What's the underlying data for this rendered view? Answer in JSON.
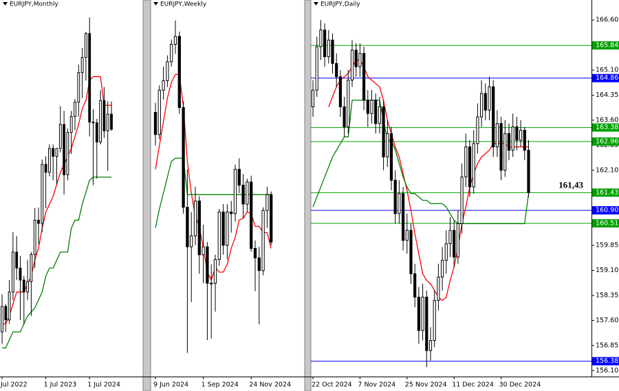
{
  "chart_data": [
    {
      "type": "candlestick",
      "title": "EURJPY,Monthly",
      "ylim": [
        130.4,
        177.6
      ],
      "categories": [
        "Jul 2022",
        null,
        null,
        null,
        null,
        null,
        null,
        null,
        null,
        null,
        null,
        null,
        "1 Jul 2023",
        null,
        null,
        null,
        null,
        null,
        null,
        null,
        null,
        null,
        null,
        null,
        "1 Jul 2024",
        null,
        null,
        null,
        null,
        null,
        null
      ],
      "ohlc": [
        [
          136.0,
          140.7,
          134.5,
          139.2
        ],
        [
          139.2,
          139.5,
          136.0,
          137.5
        ],
        [
          137.5,
          142.5,
          137.0,
          141.0
        ],
        [
          141.0,
          148.5,
          140.0,
          146.0
        ],
        [
          146.0,
          148.0,
          142.5,
          144.0
        ],
        [
          144.0,
          145.5,
          137.5,
          142.5
        ],
        [
          142.5,
          143.0,
          137.0,
          141.0
        ],
        [
          141.0,
          145.0,
          140.0,
          142.3
        ],
        [
          142.3,
          146.0,
          138.0,
          145.7
        ],
        [
          145.7,
          151.5,
          144.0,
          150.0
        ],
        [
          150.0,
          151.6,
          147.0,
          149.6
        ],
        [
          149.6,
          157.6,
          148.5,
          157.0
        ],
        [
          157.0,
          158.0,
          151.5,
          156.0
        ],
        [
          156.0,
          159.5,
          155.5,
          159.0
        ],
        [
          159.0,
          159.5,
          155.0,
          158.0
        ],
        [
          158.0,
          159.0,
          154.5,
          159.0
        ],
        [
          159.0,
          164.3,
          158.5,
          162.0
        ],
        [
          162.0,
          163.7,
          153.2,
          155.7
        ],
        [
          155.7,
          161.5,
          155.0,
          161.0
        ],
        [
          161.0,
          163.7,
          158.3,
          163.0
        ],
        [
          163.0,
          165.2,
          161.3,
          164.8
        ],
        [
          164.8,
          169.5,
          163.0,
          168.5
        ],
        [
          168.5,
          171.6,
          165.3,
          170.4
        ],
        [
          170.4,
          173.6,
          167.5,
          173.4
        ],
        [
          173.4,
          175.4,
          160.5,
          162.3
        ],
        [
          162.3,
          163.9,
          154.4,
          162.2
        ],
        [
          162.2,
          162.7,
          155.2,
          159.8
        ],
        [
          159.8,
          166.3,
          159.5,
          165.0
        ],
        [
          165.0,
          166.7,
          160.3,
          161.2
        ],
        [
          161.2,
          164.9,
          156.2,
          163.3
        ],
        [
          163.3,
          164.9,
          161.2,
          161.4
        ]
      ],
      "lines": [
        {
          "color": "#ff0000",
          "values": [
            137,
            137,
            138,
            139.5,
            141,
            141,
            141,
            142,
            143,
            145,
            146.5,
            149,
            151,
            152,
            153,
            154.5,
            156,
            157,
            158,
            159,
            160.5,
            162,
            164,
            165,
            167.5,
            168,
            168,
            168,
            164.4,
            164.4,
            164.4
          ]
        },
        {
          "color": "#008000",
          "values": [
            134,
            134,
            135,
            136,
            136,
            136,
            137,
            138,
            138.5,
            139,
            140,
            141,
            143,
            144,
            144,
            145,
            146,
            146,
            146,
            149,
            150,
            150,
            152,
            153.5,
            155,
            155.4,
            155.4,
            155.4,
            155.4,
            155.4,
            155.4
          ]
        }
      ]
    },
    {
      "type": "candlestick",
      "title": "EURJPY,Weekly",
      "ylim": [
        152.9,
        176.7
      ],
      "categories": [
        "9 Jun 2024",
        null,
        null,
        null,
        null,
        null,
        null,
        null,
        null,
        null,
        null,
        null,
        "1 Sep 2024",
        null,
        null,
        null,
        null,
        null,
        null,
        null,
        null,
        null,
        null,
        null,
        "24 Nov 2024",
        null,
        null,
        null,
        null,
        null
      ],
      "ohlc": [
        [
          169.6,
          170.2,
          167.5,
          168.2
        ],
        [
          168.2,
          171.3,
          167.9,
          171.0
        ],
        [
          171.0,
          172.5,
          170.4,
          171.6
        ],
        [
          171.6,
          173.2,
          171.2,
          172.8
        ],
        [
          172.8,
          174.2,
          172.5,
          173.9
        ],
        [
          173.9,
          175.4,
          173.3,
          174.4
        ],
        [
          174.4,
          174.7,
          169.5,
          169.9
        ],
        [
          169.9,
          170.3,
          163.2,
          163.6
        ],
        [
          163.6,
          166.0,
          154.4,
          161.1
        ],
        [
          161.1,
          163.3,
          157.6,
          161.8
        ],
        [
          161.8,
          164.9,
          161.2,
          164.0
        ],
        [
          164.0,
          164.3,
          159.4,
          160.6
        ],
        [
          160.6,
          162.5,
          158.8,
          161.1
        ],
        [
          161.1,
          161.4,
          155.2,
          158.8
        ],
        [
          158.8,
          160.0,
          155.3,
          158.8
        ],
        [
          158.8,
          160.6,
          157.0,
          160.3
        ],
        [
          160.3,
          163.5,
          159.9,
          163.3
        ],
        [
          163.3,
          163.8,
          160.6,
          161.2
        ],
        [
          161.2,
          163.8,
          160.3,
          163.3
        ],
        [
          163.3,
          164.0,
          162.0,
          163.2
        ],
        [
          163.2,
          166.3,
          162.7,
          166.0
        ],
        [
          166.0,
          166.7,
          164.5,
          165.0
        ],
        [
          165.0,
          165.7,
          162.9,
          163.8
        ],
        [
          163.8,
          165.4,
          163.3,
          165.2
        ],
        [
          165.2,
          165.6,
          160.8,
          161.0
        ],
        [
          161.0,
          161.5,
          158.3,
          160.4
        ],
        [
          160.4,
          161.1,
          156.2,
          159.6
        ],
        [
          159.6,
          163.6,
          159.3,
          163.4
        ],
        [
          163.4,
          164.9,
          162.3,
          164.4
        ],
        [
          164.4,
          164.6,
          161.2,
          161.4
        ]
      ],
      "lines": [
        {
          "color": "#ff0000",
          "values": [
            166.0,
            167.5,
            169.0,
            170.5,
            171.5,
            172.0,
            172.0,
            170.0,
            166.5,
            164.5,
            163.0,
            162.4,
            161.0,
            159.5,
            159.0,
            159.8,
            159.5,
            159.5,
            160.0,
            161.0,
            161.7,
            162.8,
            162.9,
            163.3,
            163.2,
            162.4,
            162.4,
            162.0,
            162.0,
            161.0
          ]
        },
        {
          "color": "#008000",
          "values": [
            162.3,
            163.5,
            164.5,
            165.5,
            166.5,
            166.7,
            166.7,
            166.7,
            164.4,
            164.4,
            164.4,
            164.4,
            164.4,
            164.4,
            164.4,
            164.4,
            164.4,
            164.4,
            164.4,
            164.4,
            164.4,
            164.4,
            164.4,
            164.4,
            164.4,
            164.4,
            164.4,
            164.4,
            164.4,
            164.4
          ]
        }
      ]
    },
    {
      "type": "candlestick",
      "title": "EURJPY,Daily",
      "ylim": [
        155.92,
        167.2
      ],
      "yticks": [
        {
          "value": 166.6,
          "label": "166.60"
        },
        {
          "value": 165.1,
          "label": "165.10"
        },
        {
          "value": 164.35,
          "label": "164.35"
        },
        {
          "value": 163.6,
          "label": "163.60"
        },
        {
          "value": 162.85,
          "label": "162.85"
        },
        {
          "value": 162.1,
          "label": "162.10"
        },
        {
          "value": 159.85,
          "label": "159.85"
        },
        {
          "value": 159.1,
          "label": "159.10"
        },
        {
          "value": 158.35,
          "label": "158.35"
        },
        {
          "value": 157.6,
          "label": "157.60"
        },
        {
          "value": 156.85,
          "label": "156.85"
        },
        {
          "value": 156.1,
          "label": "156.10"
        }
      ],
      "levels": [
        {
          "value": 165.84,
          "label": "165.84",
          "color": "#00a000"
        },
        {
          "value": 164.86,
          "label": "164.86",
          "color": "#0000ff"
        },
        {
          "value": 163.38,
          "label": "163.38",
          "color": "#00a000"
        },
        {
          "value": 162.96,
          "label": "162.96",
          "color": "#00a000"
        },
        {
          "value": 161.43,
          "label": "161.43",
          "color": "#00a000"
        },
        {
          "value": 160.9,
          "label": "160.90",
          "color": "#0000ff"
        },
        {
          "value": 160.51,
          "label": "160.51",
          "color": "#00a000"
        },
        {
          "value": 156.38,
          "label": "156.38",
          "color": "#0000ff"
        }
      ],
      "annotation": {
        "text": "161,43",
        "value": 161.43
      },
      "categories": [
        "22 Oct 2024",
        null,
        null,
        null,
        null,
        null,
        null,
        null,
        null,
        null,
        null,
        null,
        "7 Nov 2024",
        null,
        null,
        null,
        null,
        null,
        null,
        null,
        null,
        null,
        null,
        null,
        "25 Nov 2024",
        null,
        null,
        null,
        null,
        null,
        null,
        null,
        null,
        null,
        null,
        null,
        "11 Dec 2024",
        null,
        null,
        null,
        null,
        null,
        null,
        null,
        null,
        null,
        null,
        null,
        "30 Dec 2024",
        null,
        null,
        null,
        null,
        null,
        null,
        null
      ],
      "ohlc": [
        [
          164.0,
          164.8,
          163.7,
          164.5
        ],
        [
          164.5,
          166.1,
          164.3,
          165.8
        ],
        [
          165.8,
          166.6,
          165.4,
          166.3
        ],
        [
          166.3,
          166.5,
          165.2,
          165.5
        ],
        [
          165.5,
          166.3,
          165.3,
          166.0
        ],
        [
          166.0,
          166.2,
          165.0,
          165.3
        ],
        [
          165.3,
          165.6,
          164.6,
          164.9
        ],
        [
          164.9,
          165.1,
          163.7,
          164.0
        ],
        [
          164.0,
          164.3,
          163.1,
          163.4
        ],
        [
          163.4,
          165.1,
          163.2,
          164.8
        ],
        [
          164.8,
          166.0,
          164.6,
          165.7
        ],
        [
          165.7,
          165.9,
          164.9,
          165.2
        ],
        [
          165.2,
          165.9,
          164.9,
          165.6
        ],
        [
          165.6,
          165.8,
          163.9,
          164.2
        ],
        [
          164.2,
          164.5,
          163.4,
          163.8
        ],
        [
          163.8,
          164.5,
          163.5,
          164.2
        ],
        [
          164.2,
          164.4,
          163.2,
          163.5
        ],
        [
          163.5,
          164.3,
          163.2,
          164.0
        ],
        [
          164.0,
          164.2,
          162.1,
          162.5
        ],
        [
          162.5,
          163.6,
          162.2,
          163.2
        ],
        [
          163.2,
          163.4,
          161.5,
          161.8
        ],
        [
          161.8,
          162.1,
          160.5,
          160.8
        ],
        [
          160.8,
          161.8,
          160.5,
          161.4
        ],
        [
          161.4,
          161.6,
          159.7,
          160.0
        ],
        [
          160.0,
          160.8,
          159.6,
          160.3
        ],
        [
          160.3,
          160.5,
          158.7,
          159.0
        ],
        [
          159.0,
          159.3,
          158.0,
          158.3
        ],
        [
          158.3,
          158.6,
          156.9,
          157.3
        ],
        [
          157.3,
          158.7,
          157.0,
          158.3
        ],
        [
          158.3,
          158.5,
          156.2,
          156.7
        ],
        [
          156.7,
          157.4,
          156.4,
          157.0
        ],
        [
          157.0,
          158.5,
          156.8,
          158.2
        ],
        [
          158.2,
          159.3,
          157.9,
          158.9
        ],
        [
          158.9,
          159.8,
          158.5,
          159.4
        ],
        [
          159.4,
          160.3,
          159.0,
          159.9
        ],
        [
          159.9,
          160.7,
          159.5,
          160.3
        ],
        [
          160.3,
          160.6,
          159.2,
          159.5
        ],
        [
          159.5,
          160.9,
          159.3,
          160.5
        ],
        [
          160.5,
          162.3,
          160.2,
          161.9
        ],
        [
          161.9,
          163.2,
          161.6,
          162.8
        ],
        [
          162.8,
          163.0,
          161.3,
          161.6
        ],
        [
          161.6,
          163.3,
          161.4,
          162.9
        ],
        [
          162.9,
          164.1,
          162.6,
          163.7
        ],
        [
          163.7,
          164.8,
          163.4,
          164.4
        ],
        [
          164.4,
          164.7,
          163.6,
          163.9
        ],
        [
          163.9,
          164.9,
          163.6,
          164.6
        ],
        [
          164.6,
          164.8,
          162.5,
          162.8
        ],
        [
          162.8,
          163.9,
          162.5,
          163.5
        ],
        [
          163.5,
          163.7,
          161.8,
          162.1
        ],
        [
          162.1,
          163.6,
          161.9,
          163.2
        ],
        [
          163.2,
          163.5,
          162.4,
          162.7
        ],
        [
          162.7,
          163.8,
          162.5,
          163.4
        ],
        [
          163.4,
          163.7,
          162.7,
          163.0
        ],
        [
          163.0,
          163.6,
          162.8,
          163.3
        ],
        [
          163.3,
          163.4,
          162.4,
          162.7
        ],
        [
          162.7,
          163.0,
          161.3,
          161.43
        ]
      ],
      "lines": [
        {
          "color": "#ff0000",
          "values": [
            null,
            null,
            null,
            null,
            164.0,
            164.3,
            164.6,
            164.8,
            164.9,
            165.0,
            165.2,
            165.4,
            165.4,
            165.2,
            164.9,
            164.8,
            164.7,
            164.6,
            164.2,
            163.6,
            163.2,
            162.8,
            162.5,
            162.0,
            161.5,
            160.9,
            160.2,
            159.6,
            159.0,
            158.8,
            158.7,
            158.5,
            158.3,
            158.2,
            158.3,
            158.8,
            159.2,
            159.8,
            160.5,
            161.0,
            161.6,
            162.0,
            162.3,
            162.5,
            162.6,
            162.7,
            162.9,
            162.9,
            162.9,
            162.9,
            162.8,
            162.8,
            162.8,
            162.8,
            162.8,
            162.8
          ]
        },
        {
          "color": "#008000",
          "values": [
            161.0,
            161.3,
            161.6,
            161.9,
            162.2,
            162.5,
            162.7,
            162.9,
            163.1,
            163.1,
            164.2,
            164.2,
            164.2,
            164.2,
            164.2,
            164.2,
            164.2,
            164.2,
            163.6,
            163.0,
            163.0,
            162.7,
            162.3,
            161.9,
            161.6,
            161.4,
            161.4,
            161.3,
            161.2,
            161.2,
            161.1,
            161.1,
            161.1,
            161.1,
            161.0,
            160.8,
            160.6,
            160.5,
            160.5,
            160.5,
            160.5,
            160.5,
            160.5,
            160.5,
            160.5,
            160.5,
            160.5,
            160.5,
            160.5,
            160.5,
            160.5,
            160.5,
            160.5,
            160.5,
            160.5,
            161.4
          ]
        }
      ]
    }
  ]
}
